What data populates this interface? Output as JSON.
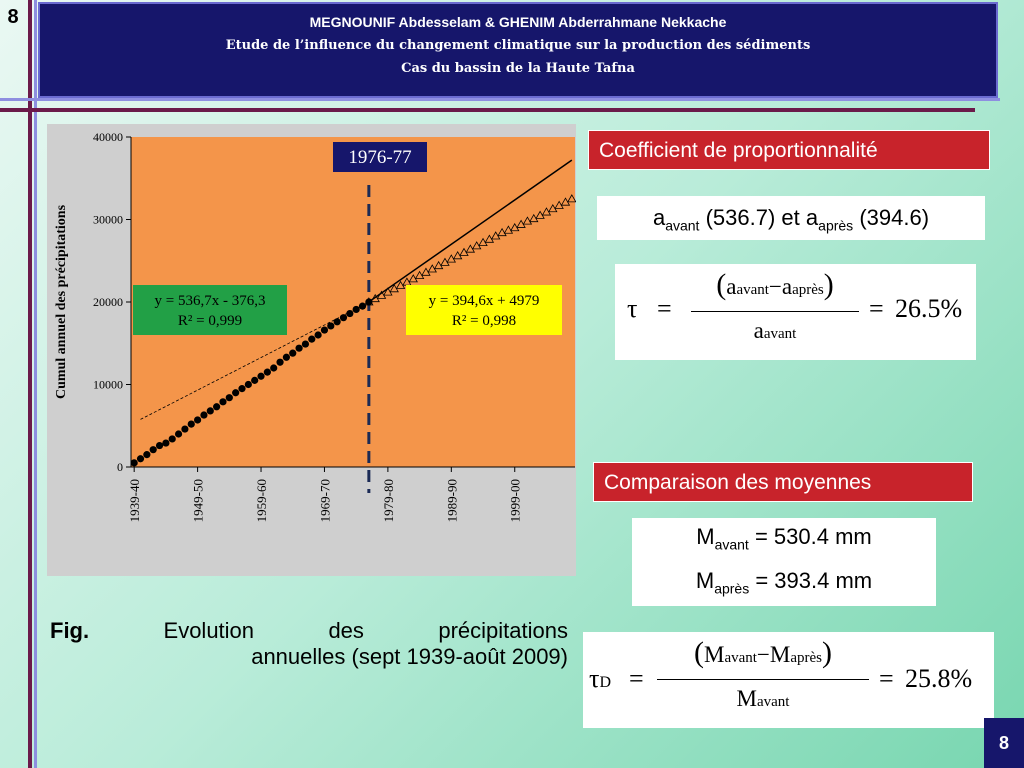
{
  "slide_number": "8",
  "header": {
    "authors": "MEGNOUNIF Abdesselam & GHENIM Abderrahmane Nekkache",
    "title": "Etude de l’influence du changement climatique sur la production des sédiments",
    "subtitle": "Cas du bassin de la Haute Tafna"
  },
  "colors": {
    "header_bg": "#16166b",
    "plot_bg": "#f4954a",
    "label_bg": "#c8232b",
    "eq1_bg": "#22a046",
    "eq2_bg": "#ffff00"
  },
  "chart_data": {
    "type": "scatter",
    "title": "",
    "ylabel": "Cumul annuel des précipitations",
    "xlabel": "",
    "ylim": [
      0,
      40000
    ],
    "yticks": [
      "0",
      "10000",
      "20000",
      "30000",
      "40000"
    ],
    "xticks": [
      "1939-40",
      "1949-50",
      "1959-60",
      "1969-70",
      "1979-80",
      "1989-90",
      "1999-00"
    ],
    "xlim": [
      1,
      70
    ],
    "break_label": "1976-77",
    "break_x": 38,
    "series": [
      {
        "marker": "circle",
        "x": [
          1,
          2,
          3,
          4,
          5,
          6,
          7,
          8,
          9,
          10,
          11,
          12,
          13,
          14,
          15,
          16,
          17,
          18,
          19,
          20,
          21,
          22,
          23,
          24,
          25,
          26,
          27,
          28,
          29,
          30,
          31,
          32,
          33,
          34,
          35,
          36,
          37,
          38
        ],
        "y": [
          500,
          1000,
          1500,
          2100,
          2600,
          2900,
          3400,
          4000,
          4600,
          5200,
          5700,
          6300,
          6800,
          7300,
          7900,
          8400,
          9000,
          9500,
          10000,
          10500,
          11000,
          11500,
          12000,
          12700,
          13300,
          13800,
          14400,
          14900,
          15500,
          16000,
          16600,
          17100,
          17600,
          18100,
          18600,
          19100,
          19500,
          20000
        ]
      },
      {
        "marker": "triangle",
        "x": [
          38,
          39,
          40,
          41,
          42,
          43,
          44,
          45,
          46,
          47,
          48,
          49,
          50,
          51,
          52,
          53,
          54,
          55,
          56,
          57,
          58,
          59,
          60,
          61,
          62,
          63,
          64,
          65,
          66,
          67,
          68,
          69,
          70
        ],
        "y": [
          20000,
          20400,
          20800,
          21200,
          21600,
          22000,
          22400,
          22800,
          23200,
          23600,
          24000,
          24400,
          24800,
          25200,
          25600,
          26000,
          26400,
          26800,
          27200,
          27600,
          28000,
          28400,
          28700,
          29000,
          29400,
          29800,
          30100,
          30500,
          30900,
          31300,
          31700,
          32100,
          32500
        ]
      }
    ],
    "regressions": [
      {
        "equation": "y = 536,7x - 376,3",
        "r2": "R² = 0,999",
        "slope": 536.7,
        "intercept": -376.3
      },
      {
        "equation": "y = 394,6x + 4979",
        "r2": "R² = 0,998",
        "slope": 394.6,
        "intercept": 4979
      }
    ],
    "grid": false
  },
  "coef": {
    "label": "Coefficient de proportionnalité",
    "a": "a",
    "avant": "avant",
    "apres": "après",
    "val_avant": "(536.7)",
    "et": "et",
    "val_apres": "(394.6)",
    "tau": "τ",
    "tau_result": "26.5%",
    "eq_sign": "=",
    "minus": "−"
  },
  "moy": {
    "label": "Comparaison des moyennes",
    "M": "M",
    "avant": "avant",
    "apres": "après",
    "m_avant_value": "= 530.4 mm",
    "m_apres_value": "= 393.4 mm",
    "tau_d_sub": "D",
    "tau_d_result": "25.8%"
  },
  "caption": {
    "fig": "Fig.",
    "text": "Evolution des précipitations annuelles (sept 1939-août 2009)"
  }
}
